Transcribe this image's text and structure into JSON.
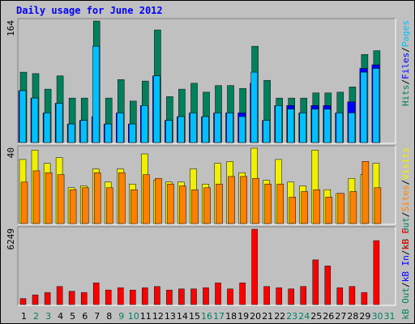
{
  "chart_data": [
    {
      "type": "bar",
      "title": "Daily usage for June 2012",
      "ylabel_parts": [
        {
          "text": "Pages",
          "color": "#00c0ff"
        },
        {
          "text": "/",
          "color": "#000000"
        },
        {
          "text": "Files",
          "color": "#0000ff"
        },
        {
          "text": "/",
          "color": "#000000"
        },
        {
          "text": "Hits",
          "color": "#00805c"
        }
      ],
      "ymax_label": "164",
      "ylim": [
        0,
        164
      ],
      "categories": [
        "1",
        "2",
        "3",
        "4",
        "5",
        "6",
        "7",
        "8",
        "9",
        "10",
        "11",
        "12",
        "13",
        "14",
        "15",
        "16",
        "17",
        "18",
        "19",
        "20",
        "21",
        "22",
        "23",
        "24",
        "25",
        "26",
        "27",
        "28",
        "29",
        "30",
        "31"
      ],
      "series": [
        {
          "name": "Hits",
          "color": "#00805c",
          "values": [
            95,
            93,
            72,
            90,
            60,
            60,
            164,
            60,
            85,
            56,
            83,
            152,
            62,
            72,
            80,
            68,
            77,
            77,
            73,
            130,
            84,
            60,
            60,
            60,
            67,
            67,
            68,
            75,
            119,
            124,
            0
          ]
        },
        {
          "name": "Files",
          "color": "#0000ff",
          "values": [
            70,
            60,
            40,
            53,
            25,
            30,
            35,
            25,
            40,
            25,
            50,
            90,
            30,
            35,
            40,
            35,
            40,
            40,
            40,
            80,
            30,
            50,
            50,
            40,
            50,
            50,
            40,
            55,
            100,
            105,
            0
          ]
        },
        {
          "name": "Pages",
          "color": "#00c0ff",
          "values": [
            70,
            60,
            40,
            53,
            25,
            30,
            130,
            25,
            40,
            25,
            50,
            90,
            30,
            35,
            40,
            35,
            40,
            40,
            35,
            95,
            30,
            50,
            45,
            40,
            45,
            45,
            40,
            40,
            95,
            100,
            0
          ]
        }
      ]
    },
    {
      "type": "bar",
      "ylabel_parts": [
        {
          "text": "Visits",
          "color": "#f0f000"
        },
        {
          "text": "/",
          "color": "#000000"
        },
        {
          "text": "Sites",
          "color": "#ff8000"
        },
        {
          "text": "/",
          "color": "#000000"
        },
        {
          "text": "kB Out",
          "color": "#00805c"
        }
      ],
      "ymax_label": "40",
      "ylim": [
        0,
        40
      ],
      "categories": [
        "1",
        "2",
        "3",
        "4",
        "5",
        "6",
        "7",
        "8",
        "9",
        "10",
        "11",
        "12",
        "13",
        "14",
        "15",
        "16",
        "17",
        "18",
        "19",
        "20",
        "21",
        "22",
        "23",
        "24",
        "25",
        "26",
        "27",
        "28",
        "29",
        "30",
        "31"
      ],
      "series": [
        {
          "name": "Visits",
          "color": "#f0f000",
          "values": [
            34,
            39,
            32,
            35,
            19,
            20,
            29,
            22,
            29,
            21,
            37,
            23,
            22,
            22,
            29,
            21,
            32,
            33,
            27,
            40,
            23,
            34,
            22,
            20,
            39,
            18,
            16,
            24,
            26,
            32,
            0
          ]
        },
        {
          "name": "Sites",
          "color": "#ff8000",
          "values": [
            22,
            28,
            27,
            26,
            18,
            19,
            27,
            19,
            27,
            18,
            26,
            24,
            21,
            20,
            18,
            19,
            21,
            25,
            25,
            24,
            21,
            21,
            14,
            17,
            18,
            14,
            16,
            17,
            33,
            19,
            0
          ]
        }
      ]
    },
    {
      "type": "bar",
      "ylabel_parts": [
        {
          "text": "kB F",
          "color": "#ff0000"
        },
        {
          "text": "/",
          "color": "#000000"
        },
        {
          "text": "kB In",
          "color": "#0000ff"
        },
        {
          "text": "/",
          "color": "#000000"
        },
        {
          "text": "kB Out",
          "color": "#00805c"
        }
      ],
      "ymax_label": "6249",
      "ylim": [
        0,
        6249
      ],
      "categories": [
        "1",
        "2",
        "3",
        "4",
        "5",
        "6",
        "7",
        "8",
        "9",
        "10",
        "11",
        "12",
        "13",
        "14",
        "15",
        "16",
        "17",
        "18",
        "19",
        "20",
        "21",
        "22",
        "23",
        "24",
        "25",
        "26",
        "27",
        "28",
        "29",
        "30",
        "31"
      ],
      "series": [
        {
          "name": "kB F",
          "color": "#ff0000",
          "values": [
            500,
            800,
            1000,
            1500,
            1100,
            1000,
            1800,
            1200,
            1400,
            1200,
            1400,
            1500,
            1200,
            1300,
            1300,
            1400,
            1800,
            1300,
            1800,
            6249,
            1500,
            1400,
            1300,
            1500,
            3700,
            3200,
            1400,
            1500,
            1000,
            5300,
            0
          ]
        }
      ]
    }
  ],
  "x_label_colors": {
    "weekday": "#000000",
    "weekend": "#00805c"
  },
  "weekend_days": [
    "2",
    "3",
    "9",
    "10",
    "16",
    "17",
    "23",
    "24",
    "30",
    "31"
  ],
  "colors": {
    "background": "#c0c0c0",
    "panel": "#c0c0c0",
    "title": "#0000ff"
  }
}
